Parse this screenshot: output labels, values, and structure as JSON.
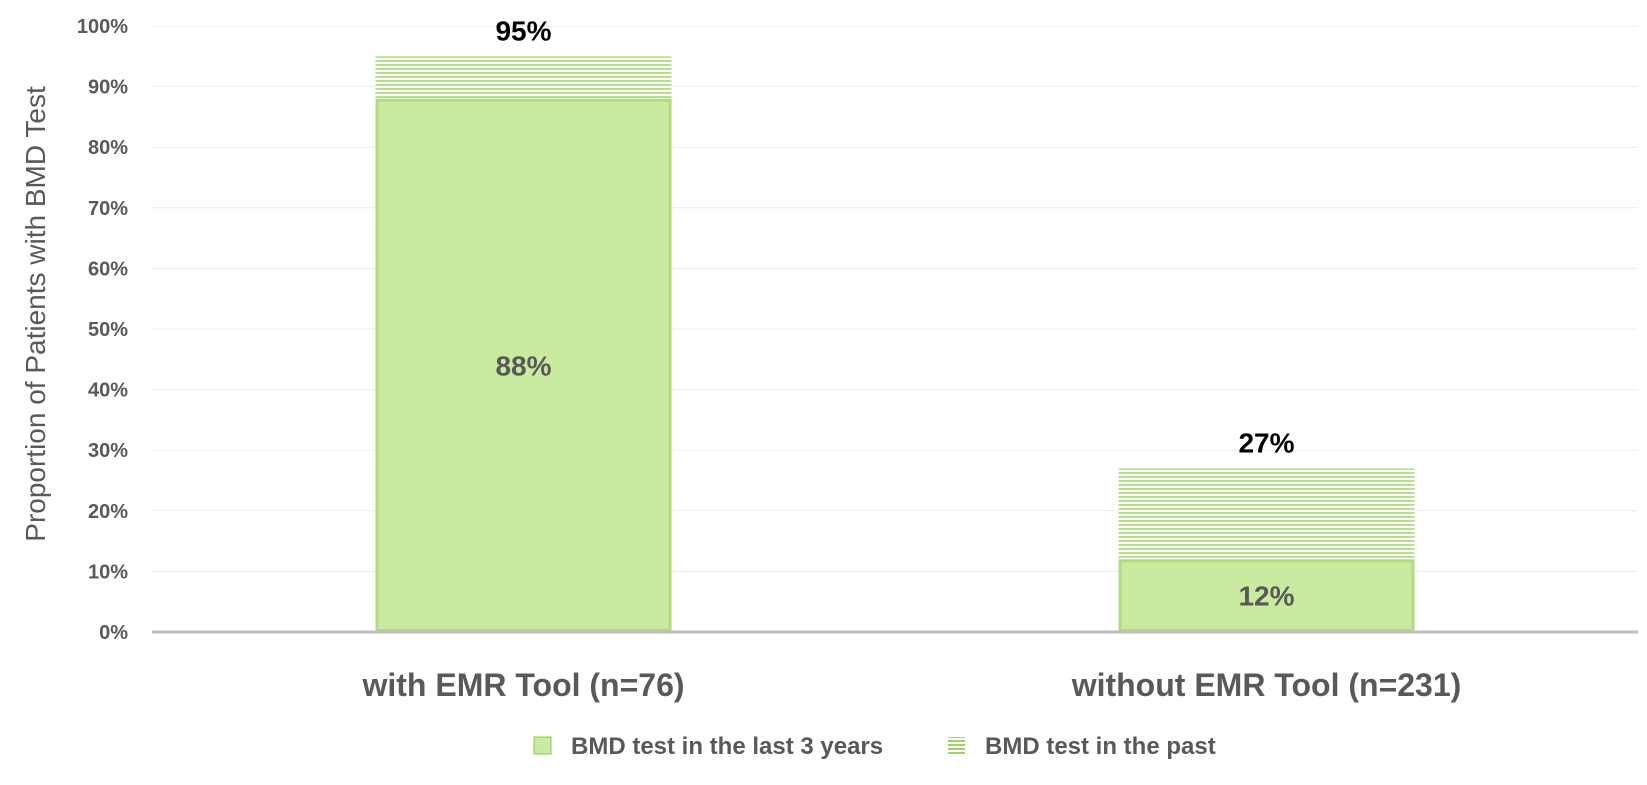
{
  "chart_data": {
    "type": "bar",
    "stacked": true,
    "categories": [
      "with EMR Tool (n=76)",
      "without EMR Tool (n=231)"
    ],
    "series": [
      {
        "name": "BMD test in the last 3 years",
        "values": [
          88,
          12
        ],
        "labels": [
          "88%",
          "12%"
        ],
        "color": "#c9eba0",
        "pattern": "solid"
      },
      {
        "name": "BMD test in the past",
        "values": [
          7,
          15
        ],
        "color": "#a6d977",
        "pattern": "horizontal-lines"
      }
    ],
    "totals": [
      95,
      27
    ],
    "total_labels": [
      "95%",
      "27%"
    ],
    "ylabel": "Proportion of Patients with BMD Test",
    "ylim": [
      0,
      100
    ],
    "yticks": [
      0,
      10,
      20,
      30,
      40,
      50,
      60,
      70,
      80,
      90,
      100
    ],
    "ytick_labels": [
      "0%",
      "10%",
      "20%",
      "30%",
      "40%",
      "50%",
      "60%",
      "70%",
      "80%",
      "90%",
      "100%"
    ],
    "grid": true,
    "legend_position": "bottom"
  }
}
